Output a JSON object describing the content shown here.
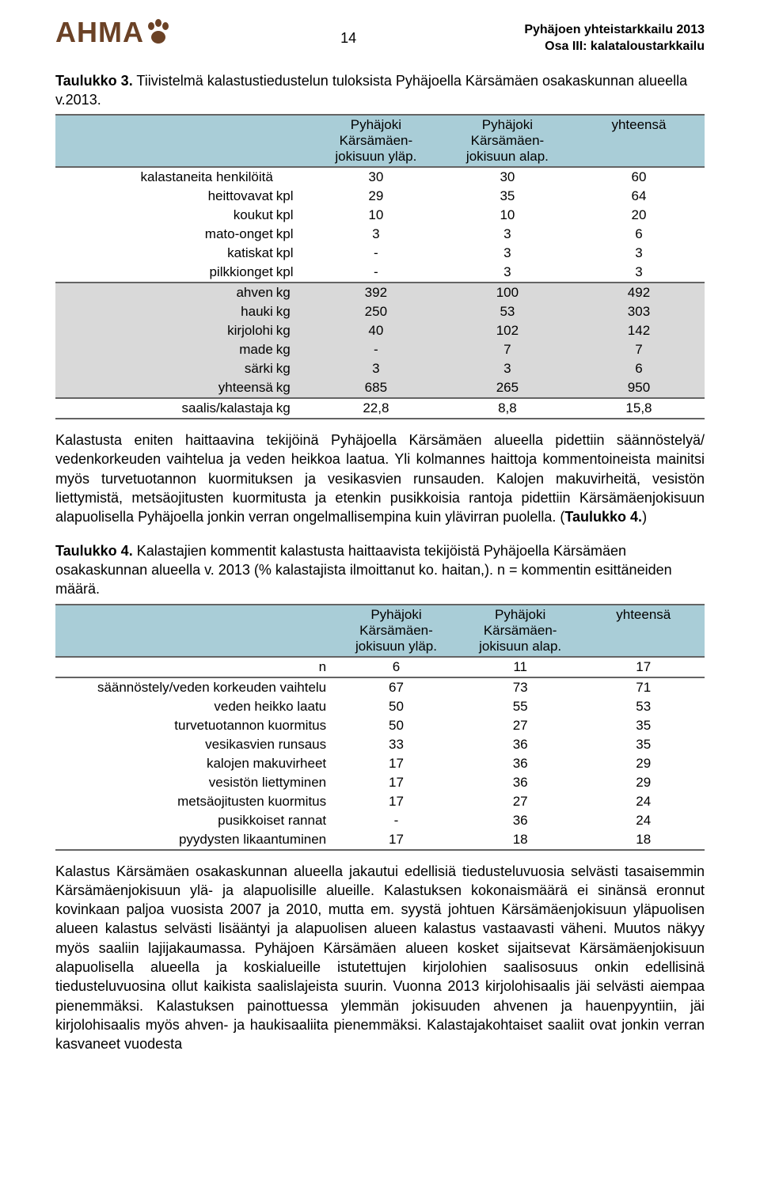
{
  "header": {
    "logo_text": "AHMA",
    "logo_color": "#6b4226",
    "page_number": "14",
    "doc_title_line1": "Pyhäjoen yhteistarkkailu 2013",
    "doc_title_line2": "Osa III: kalataloustarkkailu"
  },
  "table1": {
    "caption_bold": "Taulukko 3.",
    "caption_rest": " Tiivistelmä kalastustiedustelun tuloksista Pyhäjoella Kärsämäen osakaskunnan alueella v.2013.",
    "col1_line1": "Pyhäjoki",
    "col1_line2": "Kärsämäen-",
    "col1_line3": "jokisuun yläp.",
    "col2_line1": "Pyhäjoki",
    "col2_line2": "Kärsämäen-",
    "col2_line3": "jokisuun alap.",
    "col3": "yhteensä",
    "header_bg": "#a9cdd7",
    "section_bg": "#d9d9d9",
    "rule_color": "#646464",
    "rows_top": [
      {
        "label": "kalastaneita henkilöitä",
        "unit": "",
        "v": [
          "30",
          "30",
          "60"
        ]
      },
      {
        "label": "heittovavat",
        "unit": "kpl",
        "v": [
          "29",
          "35",
          "64"
        ]
      },
      {
        "label": "koukut",
        "unit": "kpl",
        "v": [
          "10",
          "10",
          "20"
        ]
      },
      {
        "label": "mato-onget",
        "unit": "kpl",
        "v": [
          "3",
          "3",
          "6"
        ]
      },
      {
        "label": "katiskat",
        "unit": "kpl",
        "v": [
          "-",
          "3",
          "3"
        ]
      },
      {
        "label": "pilkkionget",
        "unit": "kpl",
        "v": [
          "-",
          "3",
          "3"
        ]
      }
    ],
    "rows_mid": [
      {
        "label": "ahven",
        "unit": "kg",
        "v": [
          "392",
          "100",
          "492"
        ]
      },
      {
        "label": "hauki",
        "unit": "kg",
        "v": [
          "250",
          "53",
          "303"
        ]
      },
      {
        "label": "kirjolohi",
        "unit": "kg",
        "v": [
          "40",
          "102",
          "142"
        ]
      },
      {
        "label": "made",
        "unit": "kg",
        "v": [
          "-",
          "7",
          "7"
        ]
      },
      {
        "label": "särki",
        "unit": "kg",
        "v": [
          "3",
          "3",
          "6"
        ]
      },
      {
        "label": "yhteensä",
        "unit": "kg",
        "v": [
          "685",
          "265",
          "950"
        ]
      }
    ],
    "rows_bot": [
      {
        "label": "saalis/kalastaja",
        "unit": "kg",
        "v": [
          "22,8",
          "8,8",
          "15,8"
        ]
      }
    ]
  },
  "para1": "Kalastusta eniten haittaavina tekijöinä Pyhäjoella Kärsämäen alueella pidettiin säännöstelyä/ vedenkorkeuden vaihtelua ja veden heikkoa laatua. Yli kolmannes haittoja kommentoineista mainitsi myös turvetuotannon kuormituksen ja vesikasvien runsauden. Kalojen makuvirheitä, vesistön liettymistä, metsäojitusten kuormitusta ja etenkin pusikkoisia rantoja pidettiin Kärsämäenjokisuun alapuolisella Pyhäjoella jonkin verran ongelmallisempina kuin ylävirran puolella. (",
  "para1_bold": "Taulukko 4.",
  "para1_after": ")",
  "table2": {
    "caption_bold": "Taulukko 4.",
    "caption_rest": " Kalastajien kommentit kalastusta haittaavista tekijöistä Pyhäjoella Kärsämäen osakaskunnan alueella v. 2013 (% kalastajista ilmoittanut ko. haitan,). n = kommentin esittäneiden määrä.",
    "col1_line1": "Pyhäjoki",
    "col1_line2": "Kärsämäen-",
    "col1_line3": "jokisuun yläp.",
    "col2_line1": "Pyhäjoki",
    "col2_line2": "Kärsämäen-",
    "col2_line3": "jokisuun alap.",
    "col3": "yhteensä",
    "n_label": "n",
    "n_values": [
      "6",
      "11",
      "17"
    ],
    "rows": [
      {
        "label": "säännöstely/veden korkeuden vaihtelu",
        "v": [
          "67",
          "73",
          "71"
        ]
      },
      {
        "label": "veden heikko laatu",
        "v": [
          "50",
          "55",
          "53"
        ]
      },
      {
        "label": "turvetuotannon kuormitus",
        "v": [
          "50",
          "27",
          "35"
        ]
      },
      {
        "label": "vesikasvien runsaus",
        "v": [
          "33",
          "36",
          "35"
        ]
      },
      {
        "label": "kalojen makuvirheet",
        "v": [
          "17",
          "36",
          "29"
        ]
      },
      {
        "label": "vesistön liettyminen",
        "v": [
          "17",
          "36",
          "29"
        ]
      },
      {
        "label": "metsäojitusten kuormitus",
        "v": [
          "17",
          "27",
          "24"
        ]
      },
      {
        "label": "pusikkoiset rannat",
        "v": [
          "-",
          "36",
          "24"
        ]
      },
      {
        "label": "pyydysten likaantuminen",
        "v": [
          "17",
          "18",
          "18"
        ]
      }
    ]
  },
  "para2": "Kalastus Kärsämäen osakaskunnan alueella jakautui edellisiä tiedusteluvuosia selvästi tasaisemmin Kärsämäenjokisuun ylä- ja alapuolisille alueille. Kalastuksen kokonaismäärä ei sinänsä eronnut kovinkaan paljoa vuosista 2007 ja 2010, mutta em. syystä johtuen Kärsämäenjokisuun yläpuolisen alueen kalastus selvästi lisääntyi ja alapuolisen alueen kalastus vastaavasti väheni. Muutos näkyy myös saaliin lajijakaumassa. Pyhäjoen Kärsämäen alueen kosket sijaitsevat Kärsämäenjokisuun alapuolisella alueella ja koskialueille istutettujen kirjolohien saalisosuus onkin edellisinä tiedusteluvuosina ollut kaikista saalislajeista suurin. Vuonna 2013 kirjolohisaalis jäi selvästi aiempaa pienemmäksi. Kalastuksen painottuessa ylemmän jokisuuden ahvenen ja hauenpyyntiin, jäi kirjolohisaalis myös ahven- ja haukisaaliita pienemmäksi. Kalastajakohtaiset saaliit ovat jonkin verran kasvaneet vuodesta"
}
